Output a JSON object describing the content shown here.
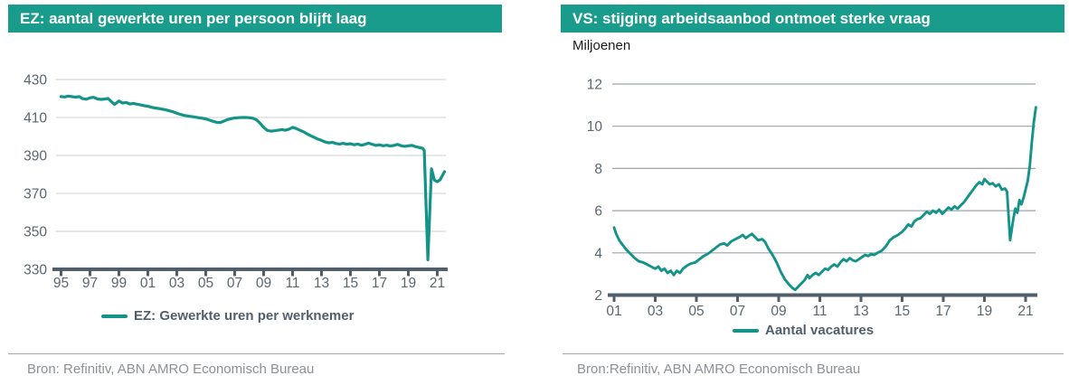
{
  "colors": {
    "header_bg": "#1a9c8c",
    "header_text": "#ffffff",
    "line": "#149389",
    "axis": "#515f6b",
    "tick_label": "#5a6771",
    "grid_left": "#d6d9da",
    "grid_right": "#9ca3a8",
    "legend_text": "#515f6b",
    "source_text": "#8d9195",
    "rule": "#a6a6a6",
    "subtitle_text": "#1a1a1a"
  },
  "chart_data": [
    {
      "id": "ez-gewerkte-uren",
      "type": "line",
      "title": "EZ: aantal gewerkte uren per persoon blijft laag",
      "legend_label": "EZ: Gewerkte uren per werknemer",
      "source": "Bron: Refinitiv, ABN AMRO Economisch Bureau",
      "ylim": [
        330,
        430
      ],
      "y_ticks": [
        430,
        410,
        390,
        370,
        350,
        330
      ],
      "x_tick_values": [
        1995,
        1997,
        1999,
        2001,
        2003,
        2005,
        2007,
        2009,
        2011,
        2013,
        2015,
        2017,
        2019,
        2021
      ],
      "x_tick_labels": [
        "95",
        "97",
        "99",
        "01",
        "03",
        "05",
        "07",
        "09",
        "11",
        "13",
        "15",
        "17",
        "19",
        "21"
      ],
      "grid": true,
      "legend_position": "bottom",
      "series": [
        {
          "name": "EZ: Gewerkte uren per werknemer",
          "points": [
            [
              1995.0,
              421.0
            ],
            [
              1995.25,
              420.8
            ],
            [
              1995.5,
              421.3
            ],
            [
              1995.75,
              421.0
            ],
            [
              1996.0,
              420.7
            ],
            [
              1996.25,
              421.0
            ],
            [
              1996.5,
              419.9
            ],
            [
              1996.75,
              419.6
            ],
            [
              1997.0,
              420.4
            ],
            [
              1997.25,
              420.6
            ],
            [
              1997.5,
              419.8
            ],
            [
              1997.75,
              419.5
            ],
            [
              1998.0,
              419.7
            ],
            [
              1998.25,
              420.0
            ],
            [
              1998.5,
              418.2
            ],
            [
              1998.7,
              416.9
            ],
            [
              1999.0,
              418.7
            ],
            [
              1999.25,
              417.6
            ],
            [
              1999.5,
              417.9
            ],
            [
              1999.75,
              417.1
            ],
            [
              2000.0,
              417.4
            ],
            [
              2000.25,
              417.0
            ],
            [
              2000.5,
              416.6
            ],
            [
              2000.75,
              416.2
            ],
            [
              2001.0,
              415.9
            ],
            [
              2001.25,
              415.4
            ],
            [
              2001.5,
              415.0
            ],
            [
              2001.75,
              414.7
            ],
            [
              2002.0,
              414.4
            ],
            [
              2002.25,
              414.0
            ],
            [
              2002.5,
              413.5
            ],
            [
              2002.75,
              413.0
            ],
            [
              2003.0,
              412.3
            ],
            [
              2003.25,
              411.6
            ],
            [
              2003.5,
              411.1
            ],
            [
              2003.75,
              410.8
            ],
            [
              2004.0,
              410.5
            ],
            [
              2004.25,
              410.2
            ],
            [
              2004.5,
              409.9
            ],
            [
              2004.75,
              409.6
            ],
            [
              2005.0,
              409.3
            ],
            [
              2005.25,
              408.6
            ],
            [
              2005.5,
              408.0
            ],
            [
              2005.75,
              407.5
            ],
            [
              2006.0,
              407.3
            ],
            [
              2006.25,
              408.1
            ],
            [
              2006.5,
              408.9
            ],
            [
              2006.75,
              409.4
            ],
            [
              2007.0,
              409.7
            ],
            [
              2007.25,
              409.9
            ],
            [
              2007.5,
              410.0
            ],
            [
              2007.75,
              410.0
            ],
            [
              2008.0,
              409.9
            ],
            [
              2008.25,
              409.6
            ],
            [
              2008.5,
              408.8
            ],
            [
              2008.75,
              407.0
            ],
            [
              2009.0,
              404.8
            ],
            [
              2009.25,
              403.2
            ],
            [
              2009.5,
              402.8
            ],
            [
              2009.75,
              403.0
            ],
            [
              2010.0,
              403.3
            ],
            [
              2010.25,
              403.6
            ],
            [
              2010.5,
              403.3
            ],
            [
              2010.75,
              403.8
            ],
            [
              2011.0,
              404.8
            ],
            [
              2011.25,
              404.2
            ],
            [
              2011.5,
              403.3
            ],
            [
              2011.75,
              402.5
            ],
            [
              2012.0,
              401.4
            ],
            [
              2012.25,
              400.4
            ],
            [
              2012.5,
              399.5
            ],
            [
              2012.75,
              398.6
            ],
            [
              2013.0,
              397.9
            ],
            [
              2013.25,
              397.1
            ],
            [
              2013.5,
              396.6
            ],
            [
              2013.75,
              396.9
            ],
            [
              2014.0,
              396.3
            ],
            [
              2014.25,
              396.0
            ],
            [
              2014.5,
              396.4
            ],
            [
              2014.75,
              395.9
            ],
            [
              2015.0,
              396.2
            ],
            [
              2015.25,
              395.6
            ],
            [
              2015.5,
              396.0
            ],
            [
              2015.75,
              395.4
            ],
            [
              2016.0,
              395.8
            ],
            [
              2016.25,
              396.5
            ],
            [
              2016.5,
              395.9
            ],
            [
              2016.75,
              395.3
            ],
            [
              2017.0,
              395.6
            ],
            [
              2017.25,
              395.1
            ],
            [
              2017.5,
              395.4
            ],
            [
              2017.75,
              395.0
            ],
            [
              2018.0,
              395.3
            ],
            [
              2018.25,
              395.8
            ],
            [
              2018.5,
              395.1
            ],
            [
              2018.75,
              394.8
            ],
            [
              2019.0,
              395.1
            ],
            [
              2019.25,
              395.3
            ],
            [
              2019.5,
              394.6
            ],
            [
              2019.75,
              394.2
            ],
            [
              2020.0,
              393.7
            ],
            [
              2020.1,
              392.5
            ],
            [
              2020.35,
              335.0
            ],
            [
              2020.6,
              383.0
            ],
            [
              2020.8,
              377.0
            ],
            [
              2021.0,
              376.2
            ],
            [
              2021.2,
              377.2
            ],
            [
              2021.5,
              381.5
            ]
          ]
        }
      ]
    },
    {
      "id": "vs-vacatures",
      "type": "line",
      "title": "VS: stijging arbeidsaanbod ontmoet sterke vraag",
      "ylabel": "Miljoenen",
      "legend_label": "Aantal vacatures",
      "source": "Bron:Refinitiv, ABN AMRO Economisch Bureau",
      "ylim": [
        2,
        12
      ],
      "y_ticks": [
        12,
        10,
        8,
        6,
        4,
        2
      ],
      "x_tick_values": [
        2001,
        2003,
        2005,
        2007,
        2009,
        2011,
        2013,
        2015,
        2017,
        2019,
        2021
      ],
      "x_tick_labels": [
        "01",
        "03",
        "05",
        "07",
        "09",
        "11",
        "13",
        "15",
        "17",
        "19",
        "21"
      ],
      "grid": true,
      "legend_position": "bottom",
      "series": [
        {
          "name": "Aantal vacatures",
          "points": [
            [
              2001.0,
              5.2
            ],
            [
              2001.1,
              4.9
            ],
            [
              2001.25,
              4.6
            ],
            [
              2001.4,
              4.4
            ],
            [
              2001.6,
              4.15
            ],
            [
              2001.8,
              3.95
            ],
            [
              2002.0,
              3.75
            ],
            [
              2002.2,
              3.6
            ],
            [
              2002.4,
              3.55
            ],
            [
              2002.6,
              3.45
            ],
            [
              2002.8,
              3.35
            ],
            [
              2003.0,
              3.25
            ],
            [
              2003.15,
              3.35
            ],
            [
              2003.3,
              3.15
            ],
            [
              2003.45,
              3.25
            ],
            [
              2003.6,
              3.05
            ],
            [
              2003.75,
              3.15
            ],
            [
              2003.9,
              2.95
            ],
            [
              2004.05,
              3.15
            ],
            [
              2004.2,
              3.05
            ],
            [
              2004.35,
              3.25
            ],
            [
              2004.55,
              3.4
            ],
            [
              2004.75,
              3.5
            ],
            [
              2004.95,
              3.55
            ],
            [
              2005.15,
              3.7
            ],
            [
              2005.35,
              3.85
            ],
            [
              2005.55,
              3.95
            ],
            [
              2005.75,
              4.1
            ],
            [
              2005.95,
              4.25
            ],
            [
              2006.15,
              4.4
            ],
            [
              2006.35,
              4.45
            ],
            [
              2006.5,
              4.35
            ],
            [
              2006.7,
              4.55
            ],
            [
              2006.9,
              4.65
            ],
            [
              2007.1,
              4.75
            ],
            [
              2007.25,
              4.85
            ],
            [
              2007.4,
              4.7
            ],
            [
              2007.55,
              4.8
            ],
            [
              2007.7,
              4.9
            ],
            [
              2007.85,
              4.75
            ],
            [
              2008.0,
              4.6
            ],
            [
              2008.2,
              4.65
            ],
            [
              2008.35,
              4.5
            ],
            [
              2008.5,
              4.2
            ],
            [
              2008.7,
              3.9
            ],
            [
              2008.9,
              3.55
            ],
            [
              2009.1,
              3.1
            ],
            [
              2009.3,
              2.75
            ],
            [
              2009.5,
              2.5
            ],
            [
              2009.65,
              2.35
            ],
            [
              2009.8,
              2.25
            ],
            [
              2009.95,
              2.4
            ],
            [
              2010.1,
              2.55
            ],
            [
              2010.25,
              2.7
            ],
            [
              2010.4,
              2.95
            ],
            [
              2010.5,
              2.8
            ],
            [
              2010.65,
              2.95
            ],
            [
              2010.8,
              3.05
            ],
            [
              2010.95,
              2.95
            ],
            [
              2011.1,
              3.1
            ],
            [
              2011.25,
              3.25
            ],
            [
              2011.4,
              3.2
            ],
            [
              2011.55,
              3.35
            ],
            [
              2011.7,
              3.45
            ],
            [
              2011.85,
              3.35
            ],
            [
              2012.0,
              3.55
            ],
            [
              2012.15,
              3.7
            ],
            [
              2012.3,
              3.6
            ],
            [
              2012.45,
              3.75
            ],
            [
              2012.6,
              3.65
            ],
            [
              2012.75,
              3.6
            ],
            [
              2012.9,
              3.7
            ],
            [
              2013.05,
              3.8
            ],
            [
              2013.2,
              3.9
            ],
            [
              2013.35,
              3.85
            ],
            [
              2013.5,
              3.95
            ],
            [
              2013.65,
              3.9
            ],
            [
              2013.8,
              4.0
            ],
            [
              2014.0,
              4.1
            ],
            [
              2014.2,
              4.3
            ],
            [
              2014.4,
              4.6
            ],
            [
              2014.6,
              4.75
            ],
            [
              2014.8,
              4.85
            ],
            [
              2015.0,
              5.0
            ],
            [
              2015.15,
              5.15
            ],
            [
              2015.3,
              5.35
            ],
            [
              2015.45,
              5.25
            ],
            [
              2015.6,
              5.5
            ],
            [
              2015.75,
              5.6
            ],
            [
              2015.9,
              5.65
            ],
            [
              2016.05,
              5.8
            ],
            [
              2016.2,
              5.95
            ],
            [
              2016.35,
              5.85
            ],
            [
              2016.5,
              6.0
            ],
            [
              2016.65,
              5.9
            ],
            [
              2016.8,
              6.05
            ],
            [
              2016.95,
              5.85
            ],
            [
              2017.1,
              6.0
            ],
            [
              2017.25,
              6.15
            ],
            [
              2017.4,
              6.05
            ],
            [
              2017.55,
              6.2
            ],
            [
              2017.7,
              6.1
            ],
            [
              2017.85,
              6.25
            ],
            [
              2018.0,
              6.4
            ],
            [
              2018.15,
              6.6
            ],
            [
              2018.3,
              6.8
            ],
            [
              2018.45,
              7.0
            ],
            [
              2018.6,
              7.2
            ],
            [
              2018.75,
              7.35
            ],
            [
              2018.9,
              7.25
            ],
            [
              2019.0,
              7.5
            ],
            [
              2019.1,
              7.4
            ],
            [
              2019.25,
              7.25
            ],
            [
              2019.4,
              7.3
            ],
            [
              2019.55,
              7.15
            ],
            [
              2019.7,
              7.25
            ],
            [
              2019.85,
              7.0
            ],
            [
              2020.0,
              7.05
            ],
            [
              2020.1,
              6.9
            ],
            [
              2020.25,
              4.6
            ],
            [
              2020.4,
              5.6
            ],
            [
              2020.5,
              6.1
            ],
            [
              2020.6,
              5.9
            ],
            [
              2020.7,
              6.5
            ],
            [
              2020.8,
              6.3
            ],
            [
              2020.9,
              6.6
            ],
            [
              2021.0,
              7.0
            ],
            [
              2021.1,
              7.4
            ],
            [
              2021.2,
              8.1
            ],
            [
              2021.3,
              9.2
            ],
            [
              2021.4,
              10.2
            ],
            [
              2021.5,
              10.9
            ]
          ]
        }
      ]
    }
  ]
}
